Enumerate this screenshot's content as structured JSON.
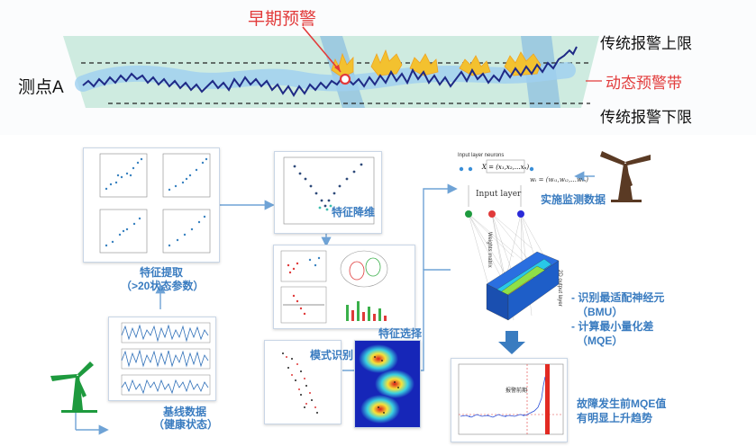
{
  "banner": {
    "early_warning": "早期预警",
    "point_label": "测点A",
    "upper_limit": "传统报警上限",
    "dynamic_band": "动态预警带",
    "lower_limit": "传统报警下限"
  },
  "steps": {
    "feature_extraction_title": "特征提取",
    "feature_extraction_sub": "（>20状态参数）",
    "dim_reduction": "特征降维",
    "feature_selection": "特征选择",
    "pattern_recognition": "模式识别",
    "baseline_title": "基线数据",
    "baseline_sub": "（健康状态）",
    "realtime_data": "实施监测数据"
  },
  "som": {
    "input_neurons_caption": "Input layer neurons",
    "input_layer": "Input layer",
    "weights_matrix": "Weights matrix",
    "output_layer": "2D output layer",
    "step1": "- 识别最适配神经元",
    "step1_sub": "（BMU）",
    "step2": "- 计算最小量化差",
    "step2_sub": "（MQE）"
  },
  "result": {
    "line1": "故障发生前MQE值",
    "line2": "有明显上升趋势",
    "chart_annotation": "报警前期"
  },
  "colors": {
    "accent_blue": "#3a7cc0",
    "warning_red": "#e23b3b",
    "band_green": "#a8dcc8",
    "signal_navy": "#1f2a86"
  }
}
